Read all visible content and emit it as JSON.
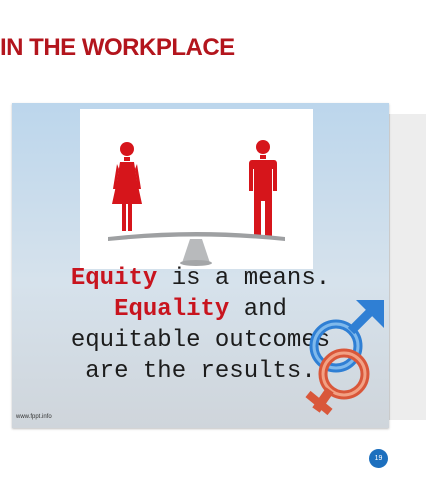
{
  "slide": {
    "title": "IN THE WORKPLACE",
    "page_number": "19"
  },
  "image": {
    "quote": {
      "line1_highlight": "Equity",
      "line1_rest": " is a means.",
      "line2_highlight": "Equality",
      "line2_rest": " and",
      "line3": "equitable outcomes",
      "line4": "are the results."
    },
    "watermark": "www.fppt.info",
    "icons": [
      "woman-figure-icon",
      "man-figure-icon",
      "balance-scale-icon",
      "male-symbol-icon",
      "female-symbol-icon"
    ]
  },
  "colors": {
    "title_red": "#b3151d",
    "figure_red": "#d6151b",
    "male_blue": "#2f7fd4",
    "female_orange": "#d9573a",
    "badge_blue": "#1c6fbe"
  }
}
